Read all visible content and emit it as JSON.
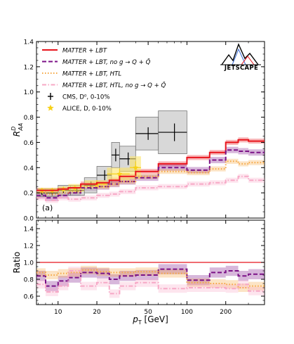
{
  "chart_data": {
    "type": "line",
    "xlabel": "p_T [GeV]",
    "xscale": "log",
    "xlim": [
      6.8,
      400
    ],
    "x_ticks": [
      10,
      20,
      50,
      100,
      200
    ],
    "x_tick_labels": [
      "10",
      "20",
      "50",
      "100",
      "200"
    ],
    "top_panel": {
      "ylabel": "R_AA^D",
      "ylim": [
        0,
        1.4
      ],
      "y_ticks": [
        0.0,
        0.2,
        0.4,
        0.6,
        0.8,
        1.0,
        1.2,
        1.4
      ],
      "y_tick_labels": [
        "0.0",
        "0.2",
        "0.4",
        "0.6",
        "0.8",
        "1.0",
        "1.2",
        "1.4"
      ],
      "panel_label": "(a)",
      "legend_position": "top-left",
      "logo_text": "JETSCAPE",
      "bin_edges": [
        6.8,
        8,
        10,
        12,
        15,
        20,
        25,
        30,
        40,
        60,
        100,
        150,
        200,
        250,
        300,
        400
      ],
      "series": [
        {
          "name": "MATTER + LBT",
          "style": "solid",
          "color": "#e8141c",
          "values": [
            0.22,
            0.22,
            0.23,
            0.24,
            0.27,
            0.28,
            0.3,
            0.33,
            0.37,
            0.43,
            0.48,
            0.52,
            0.6,
            0.62,
            0.61
          ],
          "band": 0.02
        },
        {
          "name": "MATTER + LBT, no g → Q + Q̄",
          "style": "dashed",
          "color": "#7b1287",
          "values": [
            0.18,
            0.16,
            0.18,
            0.2,
            0.24,
            0.25,
            0.27,
            0.29,
            0.32,
            0.4,
            0.38,
            0.46,
            0.54,
            0.53,
            0.52
          ],
          "band": 0.025
        },
        {
          "name": "MATTER + LBT, HTL",
          "style": "dotted",
          "color": "#f5a640",
          "values": [
            0.2,
            0.19,
            0.2,
            0.21,
            0.25,
            0.25,
            0.27,
            0.29,
            0.33,
            0.37,
            0.36,
            0.39,
            0.45,
            0.43,
            0.44
          ],
          "band": 0.02
        },
        {
          "name": "MATTER + LBT, HTL, no g → Q + Q̄",
          "style": "dashdot",
          "color": "#f7a8c6",
          "values": [
            0.16,
            0.14,
            0.16,
            0.15,
            0.16,
            0.18,
            0.19,
            0.21,
            0.24,
            0.25,
            0.27,
            0.28,
            0.3,
            0.33,
            0.3
          ],
          "band": 0.02
        }
      ],
      "data_sets": [
        {
          "name": "CMS, D⁰, 0-10%",
          "color": "#000000",
          "syst_color": "#b8b8b8",
          "points": [
            {
              "x": 7.5,
              "xerr": [
                6.8,
                8
              ],
              "y": 0.2,
              "yerr": 0.02,
              "syst": 0.03
            },
            {
              "x": 9,
              "xerr": [
                8,
                10
              ],
              "y": 0.2,
              "yerr": 0.02,
              "syst": 0.03
            },
            {
              "x": 11,
              "xerr": [
                10,
                12.5
              ],
              "y": 0.22,
              "yerr": 0.02,
              "syst": 0.04
            },
            {
              "x": 14,
              "xerr": [
                12.5,
                16
              ],
              "y": 0.22,
              "yerr": 0.02,
              "syst": 0.04
            },
            {
              "x": 18,
              "xerr": [
                16,
                20
              ],
              "y": 0.26,
              "yerr": 0.03,
              "syst": 0.06
            },
            {
              "x": 23,
              "xerr": [
                20,
                26
              ],
              "y": 0.34,
              "yerr": 0.04,
              "syst": 0.07
            },
            {
              "x": 28,
              "xerr": [
                26,
                30
              ],
              "y": 0.5,
              "yerr": 0.05,
              "syst": 0.1
            },
            {
              "x": 35,
              "xerr": [
                30,
                40
              ],
              "y": 0.47,
              "yerr": 0.05,
              "syst": 0.1
            },
            {
              "x": 50,
              "xerr": [
                40,
                60
              ],
              "y": 0.67,
              "yerr": 0.05,
              "syst": 0.13
            },
            {
              "x": 80,
              "xerr": [
                60,
                100
              ],
              "y": 0.68,
              "yerr": 0.07,
              "syst": 0.17
            }
          ]
        },
        {
          "name": "ALICE, D, 0-10%",
          "color": "#f7d117",
          "syst_color": "#fbe46a",
          "points": [
            {
              "x": 7.5,
              "xerr": [
                7,
                8
              ],
              "y": 0.22,
              "yerr": 0.02,
              "syst": 0.02
            },
            {
              "x": 9,
              "xerr": [
                8,
                10
              ],
              "y": 0.22,
              "yerr": 0.02,
              "syst": 0.02
            },
            {
              "x": 11,
              "xerr": [
                10,
                12
              ],
              "y": 0.23,
              "yerr": 0.02,
              "syst": 0.02
            },
            {
              "x": 13.5,
              "xerr": [
                12,
                16
              ],
              "y": 0.24,
              "yerr": 0.02,
              "syst": 0.03
            },
            {
              "x": 20,
              "xerr": [
                16,
                24
              ],
              "y": 0.27,
              "yerr": 0.03,
              "syst": 0.03
            },
            {
              "x": 30,
              "xerr": [
                24,
                36
              ],
              "y": 0.35,
              "yerr": 0.04,
              "syst": 0.05
            },
            {
              "x": 40,
              "xerr": [
                36,
                44
              ],
              "y": 0.4,
              "yerr": 0.05,
              "syst": 0.09
            }
          ]
        }
      ]
    },
    "ratio_panel": {
      "ylabel": "Ratio",
      "ylim": [
        0.5,
        1.5
      ],
      "y_ticks": [
        0.6,
        0.8,
        1.0,
        1.2,
        1.4
      ],
      "y_tick_labels": [
        "0.6",
        "0.8",
        "1.0",
        "1.2",
        "1.4"
      ],
      "reference_line": 1.0,
      "reference_color": "#e8141c",
      "bin_edges": [
        6.8,
        8,
        10,
        12,
        15,
        20,
        25,
        30,
        40,
        60,
        100,
        150,
        200,
        250,
        300,
        400
      ],
      "series": [
        {
          "name": "MATTER + LBT, no g → Q + Q̄",
          "style": "dashed",
          "color": "#7b1287",
          "values": [
            0.84,
            0.72,
            0.78,
            0.82,
            0.88,
            0.87,
            0.8,
            0.84,
            0.85,
            0.92,
            0.79,
            0.88,
            0.9,
            0.84,
            0.86
          ],
          "band": 0.06
        },
        {
          "name": "MATTER + LBT, HTL",
          "style": "dotted",
          "color": "#f5a640",
          "values": [
            0.88,
            0.85,
            0.87,
            0.88,
            0.91,
            0.89,
            0.88,
            0.88,
            0.89,
            0.87,
            0.76,
            0.75,
            0.74,
            0.7,
            0.72
          ],
          "band": 0.05
        },
        {
          "name": "MATTER + LBT, HTL, no g → Q + Q̄",
          "style": "dashdot",
          "color": "#f7a8c6",
          "values": [
            0.74,
            0.65,
            0.72,
            0.9,
            0.72,
            0.76,
            0.63,
            0.72,
            0.76,
            0.69,
            0.7,
            0.7,
            0.69,
            0.74,
            0.66
          ],
          "band": 0.05
        }
      ]
    }
  },
  "legend": {
    "items": [
      {
        "label": "MATTER + LBT",
        "style": "solid",
        "color": "#e8141c"
      },
      {
        "label": "MATTER + LBT,  no g → Q + Q̄",
        "style": "dashed",
        "color": "#7b1287"
      },
      {
        "label": "MATTER + LBT,  HTL",
        "style": "dotted",
        "color": "#f5a640"
      },
      {
        "label": "MATTER + LBT,  HTL,  no g → Q + Q̄",
        "style": "dashdot",
        "color": "#f7a8c6"
      },
      {
        "label": "CMS, D⁰, 0-10%",
        "style": "marker-cross",
        "color": "#000000"
      },
      {
        "label": "ALICE, D, 0-10%",
        "style": "marker-star",
        "color": "#f7d117"
      }
    ]
  }
}
